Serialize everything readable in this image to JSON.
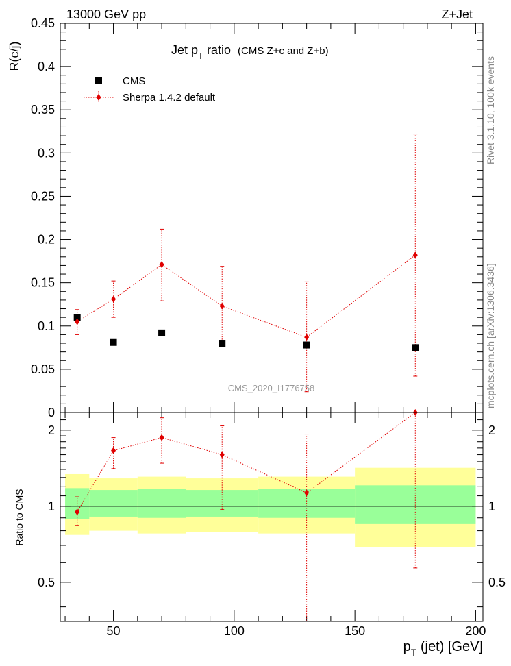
{
  "header": {
    "energy_label": "13000 GeV pp",
    "process_label": "Z+Jet"
  },
  "side_labels": {
    "rivet": "Rivet 3.1.10,  100k events",
    "mcplots": "mcplots.cern.ch [arXiv:1306.3436]"
  },
  "colors": {
    "data": "#000000",
    "mc": "#e00000",
    "band_inner": "#99ff99",
    "band_outer": "#ffff99"
  },
  "chart_data": {
    "type": "scatter",
    "title_main": "Jet p",
    "title_sub": "T",
    "title_tail": " ratio",
    "title_note": "(CMS  Z+c and Z+b)",
    "watermark": "CMS_2020_I1776758",
    "x_label_main": "p",
    "x_label_sub": "T",
    "x_label_tail": " (jet) [GeV]",
    "xlim": [
      28,
      203
    ],
    "x_ticks": [
      50,
      100,
      150,
      200
    ],
    "top_panel": {
      "ylabel": "R(c/j)",
      "ylim": [
        0,
        0.45
      ],
      "y_ticks": [
        0,
        0.05,
        0.1,
        0.15,
        0.2,
        0.25,
        0.3,
        0.35,
        0.4,
        0.45
      ],
      "y_tick_labels": [
        "0",
        "0.05",
        "0.1",
        "0.15",
        "0.2",
        "0.25",
        "0.3",
        "0.35",
        "0.4",
        "0.45"
      ],
      "legend": [
        {
          "name": "CMS",
          "marker": "square"
        },
        {
          "name": "Sherpa 1.4.2 default",
          "marker": "diamond"
        }
      ],
      "series": [
        {
          "name": "CMS",
          "x": [
            35,
            50,
            70,
            95,
            130,
            175
          ],
          "y": [
            0.11,
            0.081,
            0.092,
            0.08,
            0.078,
            0.075
          ]
        },
        {
          "name": "Sherpa 1.4.2 default",
          "x": [
            35,
            50,
            70,
            95,
            130,
            175
          ],
          "y": [
            0.105,
            0.131,
            0.171,
            0.123,
            0.087,
            0.182
          ],
          "y_err_lo": [
            0.09,
            0.11,
            0.129,
            0.076,
            0.024,
            0.042
          ],
          "y_err_hi": [
            0.119,
            0.152,
            0.212,
            0.169,
            0.151,
            0.322
          ]
        }
      ]
    },
    "ratio_panel": {
      "ylabel": "Ratio to CMS",
      "ylim": [
        0.35,
        2.35
      ],
      "y_ticks": [
        0.5,
        1,
        2
      ],
      "y_tick_labels": [
        "0.5",
        "1",
        "2"
      ],
      "reference": 1,
      "bands": [
        {
          "x_lo": 30,
          "x_hi": 40,
          "inner": [
            0.89,
            1.18
          ],
          "outer": [
            0.77,
            1.34
          ]
        },
        {
          "x_lo": 40,
          "x_hi": 60,
          "inner": [
            0.91,
            1.16
          ],
          "outer": [
            0.8,
            1.29
          ]
        },
        {
          "x_lo": 60,
          "x_hi": 80,
          "inner": [
            0.9,
            1.17
          ],
          "outer": [
            0.78,
            1.31
          ]
        },
        {
          "x_lo": 80,
          "x_hi": 110,
          "inner": [
            0.91,
            1.16
          ],
          "outer": [
            0.79,
            1.29
          ]
        },
        {
          "x_lo": 110,
          "x_hi": 150,
          "inner": [
            0.9,
            1.17
          ],
          "outer": [
            0.78,
            1.31
          ]
        },
        {
          "x_lo": 150,
          "x_hi": 200,
          "inner": [
            0.85,
            1.21
          ],
          "outer": [
            0.69,
            1.42
          ]
        }
      ],
      "series": [
        {
          "name": "Sherpa 1.4.2 default",
          "x": [
            35,
            50,
            70,
            95,
            130,
            175
          ],
          "y": [
            0.95,
            1.66,
            1.87,
            1.6,
            1.13,
            2.4
          ],
          "y_err_lo": [
            0.84,
            1.41,
            1.48,
            0.97,
            0.33,
            0.57
          ],
          "y_err_hi": [
            1.09,
            1.87,
            2.24,
            2.08,
            1.93,
            4.3
          ]
        }
      ]
    }
  }
}
